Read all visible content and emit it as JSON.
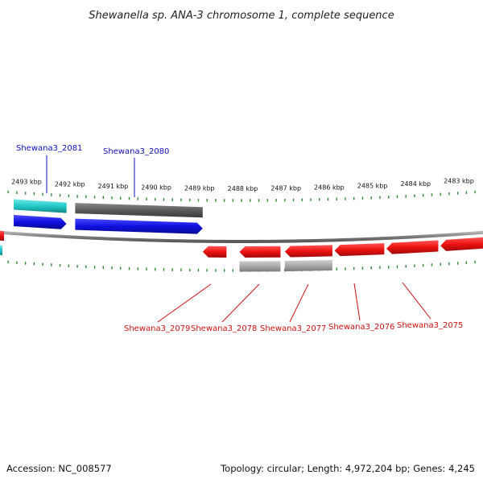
{
  "title": "Shewanella sp. ANA-3 chromosome 1, complete sequence",
  "footer": {
    "accession": "Accession: NC_008577",
    "summary": "Topology: circular; Length: 4,972,204 bp; Genes: 4,245"
  },
  "colors": {
    "backbone": "#8a8a8a",
    "forward_cds": "#1010e0",
    "reverse_cds": "#ee1111",
    "forward_gene": "#23c8c8",
    "forward_gene_alt": "#5a5a5a",
    "reverse_gene": "#a8a8a8",
    "tick": "#2f8a2f",
    "forward_label": "#1010c0",
    "reverse_label": "#cc1111"
  },
  "scale": {
    "unit": "kbp",
    "view_start_kbp": 2482.3,
    "view_end_kbp": 2493.6,
    "major_ticks": [
      "2483 kbp",
      "2484 kbp",
      "2485 kbp",
      "2486 kbp",
      "2487 kbp",
      "2488 kbp",
      "2489 kbp",
      "2490 kbp",
      "2491 kbp",
      "2492 kbp",
      "2493 kbp"
    ]
  },
  "forward_features": [
    {
      "name": "Shewana3_2081",
      "start_kbp": 2492.15,
      "end_kbp": 2493.6,
      "labeled": true
    },
    {
      "name": "Shewana3_2080",
      "start_kbp": 2489.0,
      "end_kbp": 2491.95,
      "labeled": true
    }
  ],
  "reverse_features": [
    {
      "name": "Shewana3_2079",
      "start_kbp": 2488.45,
      "end_kbp": 2489.0,
      "labeled": true,
      "gene_row": false
    },
    {
      "name": "Shewana3_2078",
      "start_kbp": 2487.2,
      "end_kbp": 2488.15,
      "labeled": true,
      "gene_row": true
    },
    {
      "name": "Shewana3_2077",
      "start_kbp": 2486.0,
      "end_kbp": 2487.1,
      "labeled": true,
      "gene_row": true
    },
    {
      "name": "Shewana3_2076",
      "start_kbp": 2484.8,
      "end_kbp": 2485.95,
      "labeled": true,
      "gene_row": false
    },
    {
      "name": "Shewana3_2075",
      "start_kbp": 2483.55,
      "end_kbp": 2484.75,
      "labeled": true,
      "gene_row": false
    },
    {
      "name": "",
      "start_kbp": 2482.3,
      "end_kbp": 2483.5,
      "labeled": false,
      "gene_row": false
    }
  ],
  "labels_forward": [
    "Shewana3_2081",
    "Shewana3_2080"
  ],
  "labels_reverse": [
    "Shewana3_2079",
    "Shewana3_2078",
    "Shewana3_2077",
    "Shewana3_2076",
    "Shewana3_2075"
  ]
}
